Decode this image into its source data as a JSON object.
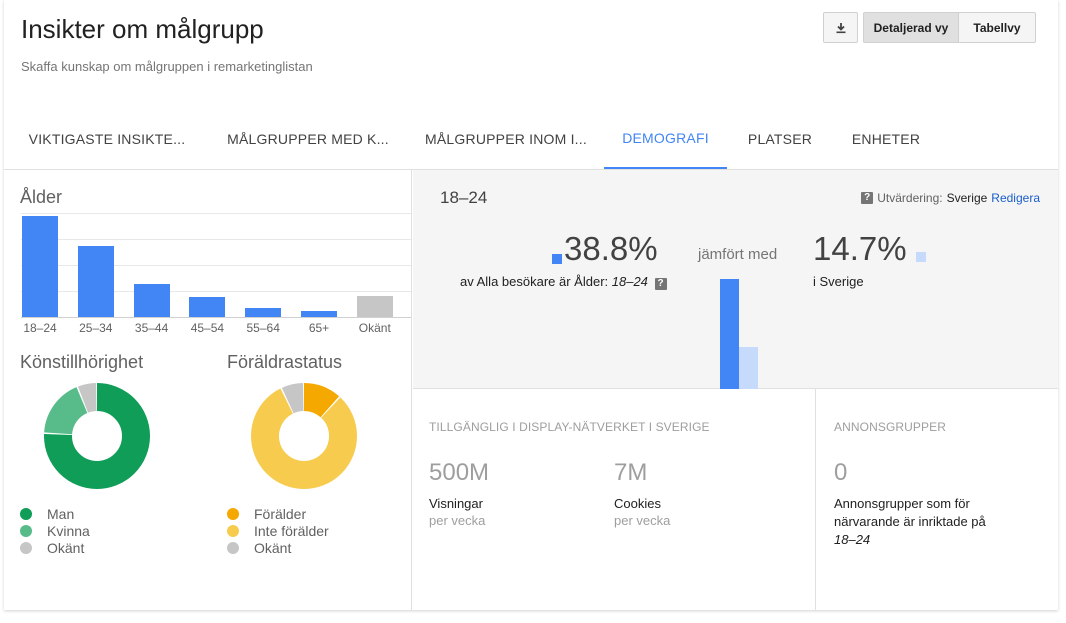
{
  "header": {
    "title": "Insikter om målgrupp",
    "subtitle": "Skaffa kunskap om målgruppen i remarketinglistan",
    "view_detailed": "Detaljerad vy",
    "view_table": "Tabellvy",
    "download_icon": "download-icon"
  },
  "tabs": [
    {
      "label": "VIKTIGASTE INSIKTE..."
    },
    {
      "label": "MÅLGRUPPER MED K..."
    },
    {
      "label": "MÅLGRUPPER INOM I..."
    },
    {
      "label": "DEMOGRAFI"
    },
    {
      "label": "PLATSER"
    },
    {
      "label": "ENHETER"
    }
  ],
  "active_tab": "DEMOGRAFI",
  "colors": {
    "accent": "#4285f4",
    "light_blue": "#c6dafc",
    "unknown_gray": "#c6c6c6",
    "man": "#0f9d58",
    "woman": "#57bb8a",
    "parent": "#f4a800",
    "non_parent": "#f7cb4d"
  },
  "age": {
    "title": "Ålder",
    "chart_data": {
      "type": "bar",
      "categories": [
        "18–24",
        "25–34",
        "35–44",
        "45–54",
        "55–64",
        "65+",
        "Okänt"
      ],
      "values": [
        38.8,
        27.5,
        12.7,
        7.8,
        3.3,
        2.3,
        8.0
      ],
      "ylim": [
        0,
        40
      ],
      "grid": true
    }
  },
  "gender": {
    "title": "Könstillhörighet",
    "chart_data": {
      "type": "pie",
      "categories": [
        "Man",
        "Kvinna",
        "Okänt"
      ],
      "values": [
        76,
        18,
        6
      ]
    },
    "legend": [
      "Man",
      "Kvinna",
      "Okänt"
    ]
  },
  "parental": {
    "title": "Föräldrastatus",
    "chart_data": {
      "type": "pie",
      "categories": [
        "Förälder",
        "Inte förälder",
        "Okänt"
      ],
      "values": [
        12,
        81,
        7
      ]
    },
    "legend": [
      "Förälder",
      "Inte förälder",
      "Okänt"
    ]
  },
  "detail": {
    "range": "18–24",
    "eval_label": "Utvärdering:",
    "eval_country": "Sverige",
    "eval_edit": "Redigera",
    "pct_audience": "38.8%",
    "pct_audience_caption_prefix": "av Alla besökare är Ålder:",
    "pct_audience_caption_range": "18–24",
    "compared": "jämfört med",
    "pct_country": "14.7%",
    "pct_country_caption": "i Sverige",
    "compare_chart": {
      "type": "bar",
      "categories": [
        "Alla besökare",
        "Sverige"
      ],
      "values": [
        38.8,
        14.7
      ]
    }
  },
  "availability": {
    "label": "TILLGÄNGLIG I DISPLAY-NÄTVERKET I SVERIGE",
    "impressions_value": "500M",
    "impressions_name": "Visningar",
    "impressions_sub": "per vecka",
    "cookies_value": "7M",
    "cookies_name": "Cookies",
    "cookies_sub": "per vecka"
  },
  "adgroups": {
    "label": "ANNONSGRUPPER",
    "value": "0",
    "text_line1": "Annonsgrupper som för",
    "text_line2": "närvarande är inriktade på",
    "text_range": "18–24"
  }
}
